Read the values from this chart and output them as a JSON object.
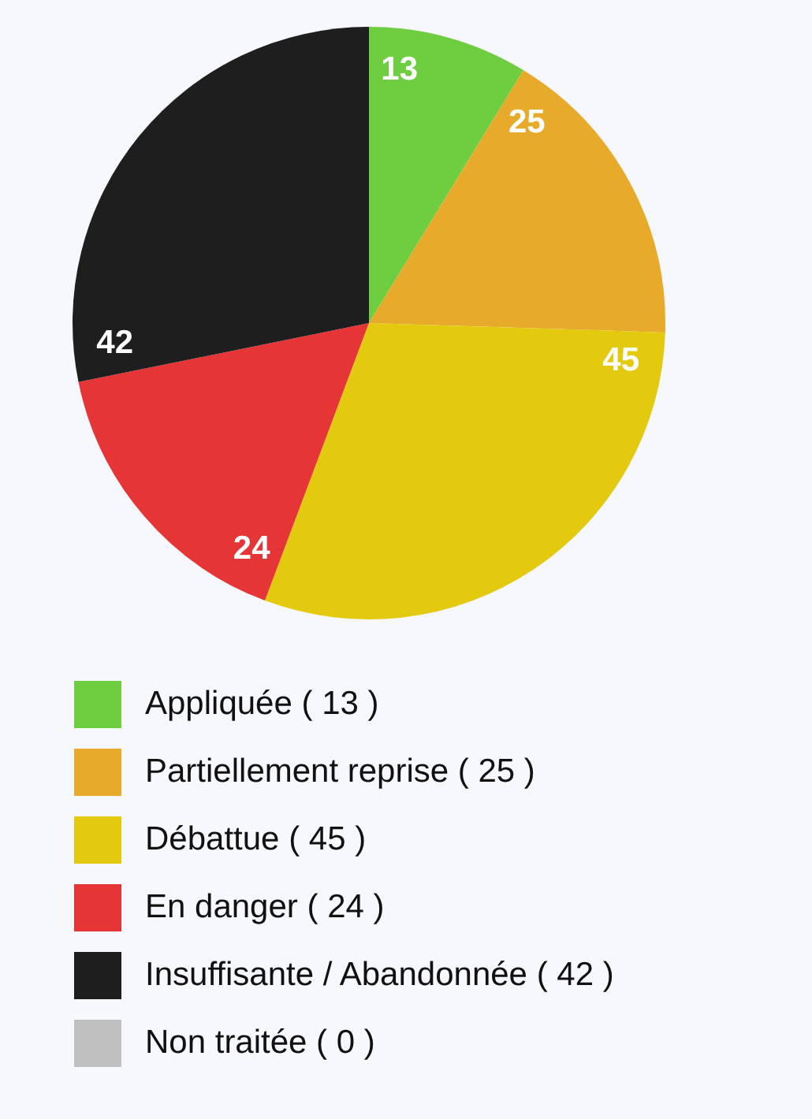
{
  "chart_data": {
    "type": "pie",
    "categories": [
      "Appliquée ( 13 )",
      "Partiellement reprise ( 25 )",
      "Débattue ( 45 )",
      "En danger ( 24 )",
      "Insuffisante / Abandonnée ( 42 )",
      "Non traitée ( 0 )"
    ],
    "values": [
      13,
      25,
      45,
      24,
      42,
      0
    ],
    "colors": [
      "#6fcd40",
      "#e8aa2b",
      "#e3ca0e",
      "#e53536",
      "#1e1e1e",
      "#c0c0c0"
    ],
    "value_labels": [
      "13",
      "25",
      "45",
      "24",
      "42",
      null
    ],
    "legend": "bottom"
  }
}
